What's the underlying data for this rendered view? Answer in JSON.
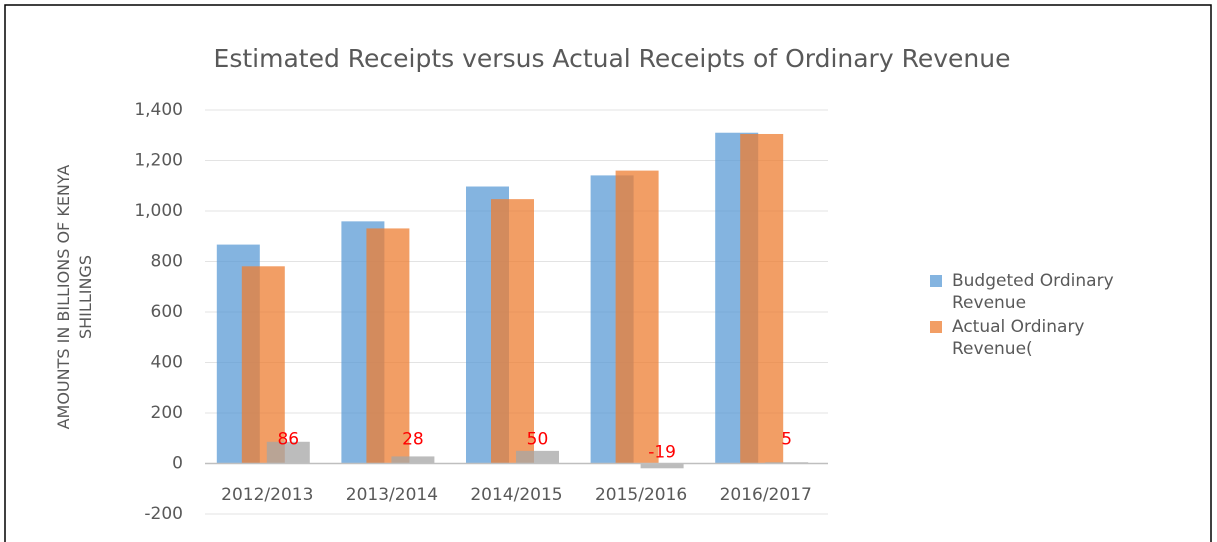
{
  "chart_data": {
    "type": "bar",
    "title": "Estimated Receipts versus Actual Receipts of Ordinary Revenue",
    "y_label": "AMOUNTS  IN BILLIONS OF KENYA SHILLINGS",
    "categories": [
      "2012/2013",
      "2013/2014",
      "2014/2015",
      "2015/2016",
      "2016/2017"
    ],
    "series": [
      {
        "name": "Budgeted Ordinary Revenue",
        "color": "#5b9bd5",
        "values": [
          867,
          959,
          1097,
          1141,
          1310
        ]
      },
      {
        "name": "Actual Ordinary Revenue(",
        "color": "#ed7d31",
        "values": [
          781,
          931,
          1047,
          1160,
          1305
        ]
      },
      {
        "color": "#a5a5a5",
        "values": [
          86,
          28,
          50,
          -19,
          5
        ],
        "data_labels": true,
        "label_color": "#ff0000"
      }
    ],
    "ylim": [
      -200,
      1400
    ],
    "yticks": [
      -200,
      0,
      200,
      400,
      600,
      800,
      {
        "value": 1000,
        "label": "1,000"
      },
      {
        "value": 1200,
        "label": "1,200"
      },
      {
        "value": 1400,
        "label": "1,400"
      }
    ],
    "grid": true,
    "legend": "right"
  }
}
